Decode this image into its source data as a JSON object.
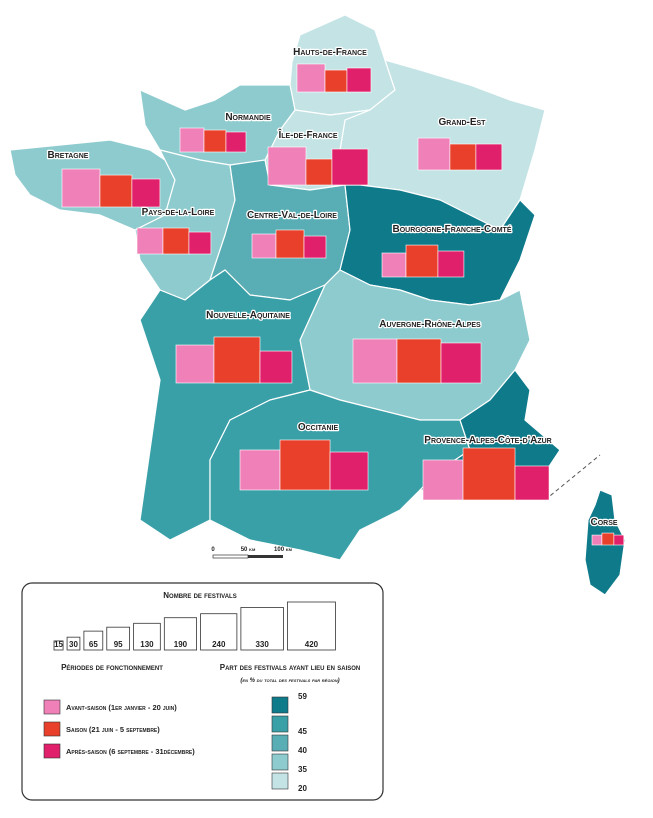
{
  "regions": [
    {
      "name": "Hauts-de-France",
      "values": [
        143,
        88,
        105
      ]
    },
    {
      "name": "Normandie",
      "values": [
        105,
        88,
        73
      ]
    },
    {
      "name": "Île-de-France",
      "values": [
        263,
        123,
        236
      ]
    },
    {
      "name": "Grand-Est",
      "values": [
        186,
        123,
        123
      ]
    },
    {
      "name": "Bretagne",
      "values": [
        263,
        186,
        143
      ]
    },
    {
      "name": "Pays-de-la-Loire",
      "values": [
        123,
        123,
        88
      ]
    },
    {
      "name": "Centre-Val-de-Loire",
      "values": [
        105,
        143,
        88
      ]
    },
    {
      "name": "Bourgogne-Franche-Comté",
      "values": [
        105,
        186,
        123
      ]
    },
    {
      "name": "Nouvelle-Aquitaine",
      "values": [
        263,
        386,
        186
      ]
    },
    {
      "name": "Auvergne-Rhône-Alpes",
      "values": [
        353,
        353,
        292
      ]
    },
    {
      "name": "Occitanie",
      "values": [
        292,
        456,
        263
      ]
    },
    {
      "name": "Provence-Alpes-Côte-d'Azur",
      "values": [
        292,
        493,
        211
      ]
    },
    {
      "name": "Corse",
      "values": [
        18,
        26,
        18
      ]
    }
  ],
  "scale_bar": {
    "labels": [
      "0",
      "50 km",
      "100 km"
    ]
  },
  "size_legend": {
    "title": "Nombre de festivals",
    "values": [
      15,
      30,
      65,
      95,
      130,
      190,
      240,
      330,
      420
    ]
  },
  "periods": {
    "title": "Périodes de fonctionnement",
    "items": [
      {
        "label": "Avant-saison (1er janvier - 20 juin)",
        "color": "#f080b8"
      },
      {
        "label": "Saison (21 juin - 5 septembre)",
        "color": "#e8402a"
      },
      {
        "label": "Après-saison (6 septembre - 31décembre)",
        "color": "#e0206a"
      }
    ]
  },
  "share_legend": {
    "title": "Part des festivals ayant lieu en saison",
    "subtitle": "(en % du total des festivals par région)",
    "ticks": [
      59,
      45,
      40,
      35,
      20
    ],
    "colors": [
      "#0e7a8a",
      "#3aa0a8",
      "#59aeb5",
      "#8ecbcf",
      "#c4e3e5"
    ]
  }
}
